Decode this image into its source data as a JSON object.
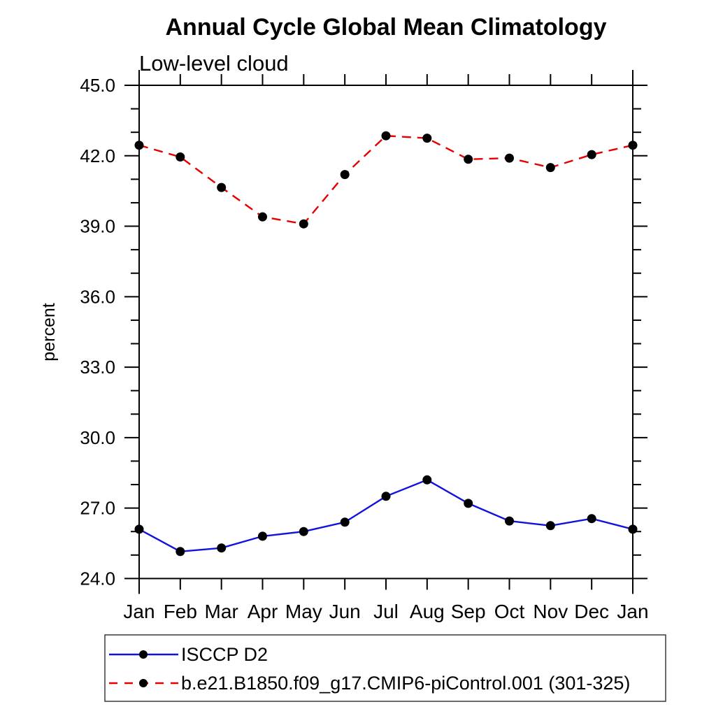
{
  "page": {
    "title": "Annual Cycle Global Mean Climatology",
    "subtitle": "Low-level cloud"
  },
  "chart_data": {
    "type": "line",
    "title": "Annual Cycle Global Mean Climatology",
    "subtitle": "Low-level cloud",
    "xlabel": "",
    "ylabel": "percent",
    "x_categories": [
      "Jan",
      "Feb",
      "Mar",
      "Apr",
      "May",
      "Jun",
      "Jul",
      "Aug",
      "Sep",
      "Oct",
      "Nov",
      "Dec",
      "Jan"
    ],
    "ylim": [
      24.0,
      45.0
    ],
    "y_major_ticks": [
      24.0,
      27.0,
      30.0,
      33.0,
      36.0,
      39.0,
      42.0,
      45.0
    ],
    "y_major_tick_labels": [
      "24.0",
      "27.0",
      "30.0",
      "33.0",
      "36.0",
      "39.0",
      "42.0",
      "45.0"
    ],
    "y_minor_tick_step": 1.0,
    "grid": false,
    "legend_position": "bottom-left-outside",
    "marker": "filled-circle",
    "marker_color": "#000000",
    "series": [
      {
        "name": "ISCCP D2",
        "line_style": "solid",
        "color": "#1212dd",
        "values": [
          26.1,
          25.15,
          25.3,
          25.8,
          26.0,
          26.4,
          27.5,
          28.2,
          27.2,
          26.45,
          26.25,
          26.55,
          26.1
        ]
      },
      {
        "name": "b.e21.B1850.f09_g17.CMIP6-piControl.001 (301-325)",
        "line_style": "dashed",
        "color": "#e60000",
        "values": [
          42.45,
          41.95,
          40.65,
          39.4,
          39.1,
          41.2,
          42.85,
          42.75,
          41.85,
          41.9,
          41.5,
          42.05,
          42.45
        ]
      }
    ]
  }
}
